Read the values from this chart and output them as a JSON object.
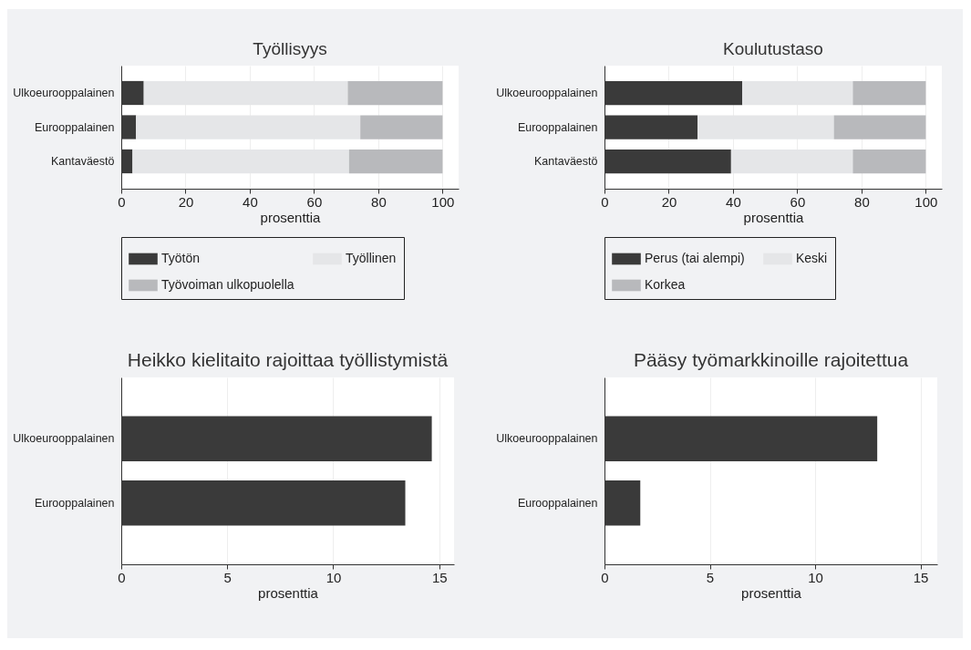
{
  "chart_data": [
    {
      "type": "bar",
      "orientation": "horizontal",
      "stacked": true,
      "title": "Työllisyys",
      "xlabel": "prosenttia",
      "categories": [
        "Ulkoeurooppalainen",
        "Eurooppalainen",
        "Kantaväestö"
      ],
      "series": [
        {
          "name": "Työtön",
          "color": "#3a3a3a",
          "values": [
            7.0,
            4.6,
            3.5
          ]
        },
        {
          "name": "Työllinen",
          "color": "#e5e6e8",
          "values": [
            63.5,
            69.8,
            67.4
          ]
        },
        {
          "name": "Työvoiman ulkopuolella",
          "color": "#b8b9bc",
          "values": [
            29.5,
            25.6,
            29.1
          ]
        }
      ],
      "xlim": [
        0,
        105
      ],
      "xticks": [
        0,
        20,
        40,
        60,
        80,
        100
      ],
      "grid": "x",
      "legend": "bottom"
    },
    {
      "type": "bar",
      "orientation": "horizontal",
      "stacked": true,
      "title": "Koulutustaso",
      "xlabel": "prosenttia",
      "categories": [
        "Ulkoeurooppalainen",
        "Eurooppalainen",
        "Kantaväestö"
      ],
      "series": [
        {
          "name": "Perus (tai alempi)",
          "color": "#3a3a3a",
          "values": [
            42.9,
            29.0,
            39.4
          ]
        },
        {
          "name": "Keski",
          "color": "#e5e6e8",
          "values": [
            34.4,
            42.4,
            37.9
          ]
        },
        {
          "name": "Korkea",
          "color": "#b8b9bc",
          "values": [
            22.7,
            28.6,
            22.7
          ]
        }
      ],
      "xlim": [
        0,
        105
      ],
      "xticks": [
        0,
        20,
        40,
        60,
        80,
        100
      ],
      "grid": "x",
      "legend": "bottom"
    },
    {
      "type": "bar",
      "orientation": "horizontal",
      "title": "Heikko kielitaito rajoittaa työllistymistä",
      "xlabel": "prosenttia",
      "categories": [
        "Ulkoeurooppalainen",
        "Eurooppalainen"
      ],
      "color": "#3a3a3a",
      "values": [
        14.65,
        13.4
      ],
      "xlim": [
        0,
        15.7
      ],
      "xticks": [
        0,
        5,
        10,
        15
      ],
      "grid": "x"
    },
    {
      "type": "bar",
      "orientation": "horizontal",
      "title": "Pääsy työmarkkinoille rajoitettua",
      "xlabel": "prosenttia",
      "categories": [
        "Ulkoeurooppalainen",
        "Eurooppalainen"
      ],
      "color": "#3a3a3a",
      "values": [
        12.95,
        1.7
      ],
      "xlim": [
        0,
        15.8
      ],
      "xticks": [
        0,
        5,
        10,
        15
      ],
      "grid": "x"
    }
  ]
}
